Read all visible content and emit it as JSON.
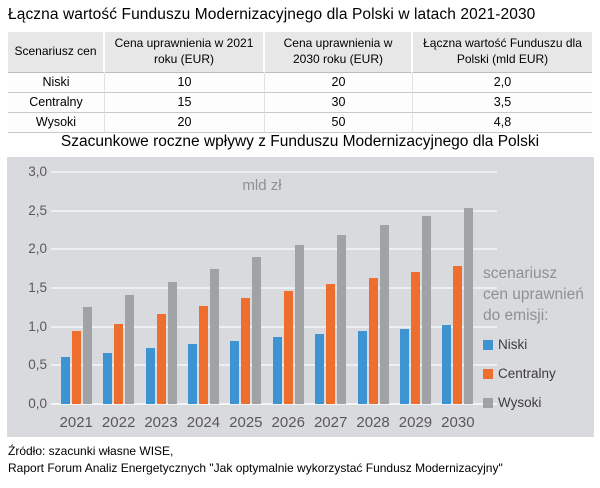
{
  "page": {
    "title_top": "Łączna wartość Funduszu Modernizacyjnego dla Polski w latach 2021-2030",
    "title_chart": "Szacunkowe roczne wpływy z Funduszu Modernizacyjnego dla Polski",
    "source_line1": "Źródło: szacunki własne WISE,",
    "source_line2": "Raport Forum Analiz Energetycznych \"Jak optymalnie wykorzystać Fundusz Modernizacyjny\""
  },
  "table": {
    "headers": [
      "Scenariusz cen",
      "Cena uprawnienia w 2021 roku (EUR)",
      "Cena uprawnienia w 2030 roku (EUR)",
      "Łączna wartość Funduszu dla Polski (mld EUR)"
    ],
    "rows": [
      [
        "Niski",
        "10",
        "20",
        "2,0"
      ],
      [
        "Centralny",
        "15",
        "30",
        "3,5"
      ],
      [
        "Wysoki",
        "20",
        "50",
        "4,8"
      ]
    ]
  },
  "chart_data": {
    "type": "bar",
    "title": "Szacunkowe roczne wpływy z Funduszu Modernizacyjnego dla Polski",
    "unit_label": "mld zł",
    "categories": [
      "2021",
      "2022",
      "2023",
      "2024",
      "2025",
      "2026",
      "2027",
      "2028",
      "2029",
      "2030"
    ],
    "series": [
      {
        "name": "Niski",
        "color": "#3E93D2",
        "values": [
          0.61,
          0.66,
          0.72,
          0.77,
          0.82,
          0.86,
          0.9,
          0.95,
          0.97,
          1.02
        ]
      },
      {
        "name": "Centralny",
        "color": "#ED6E2D",
        "values": [
          0.94,
          1.04,
          1.16,
          1.27,
          1.37,
          1.46,
          1.55,
          1.63,
          1.71,
          1.79
        ]
      },
      {
        "name": "Wysoki",
        "color": "#A1A2A5",
        "values": [
          1.25,
          1.41,
          1.58,
          1.75,
          1.9,
          2.05,
          2.18,
          2.31,
          2.43,
          2.54
        ]
      }
    ],
    "ylim": [
      0,
      3.0
    ],
    "ytick_step": 0.5,
    "yticks_labels": [
      "0,0",
      "0,5",
      "1,0",
      "1,5",
      "2,0",
      "2,5",
      "3,0"
    ],
    "grid": true,
    "legend_position": "right",
    "legend_title": "scenariusz cen uprawnień do emisji:",
    "legend_title_lines": [
      "scenariusz",
      "cen uprawnień",
      "do emisji:"
    ],
    "legend_entries": [
      "Niski",
      "Centralny",
      "Wysoki"
    ]
  },
  "colors": {
    "plot_background": "#D9DADE",
    "gridline": "#EEEFF2",
    "axis_text": "#595959",
    "legend_title_text": "#8E9093",
    "table_header_bg": "#E7E7E7",
    "series_niski": "#3E93D2",
    "series_centralny": "#ED6E2D",
    "series_wysoki": "#A1A2A5"
  }
}
